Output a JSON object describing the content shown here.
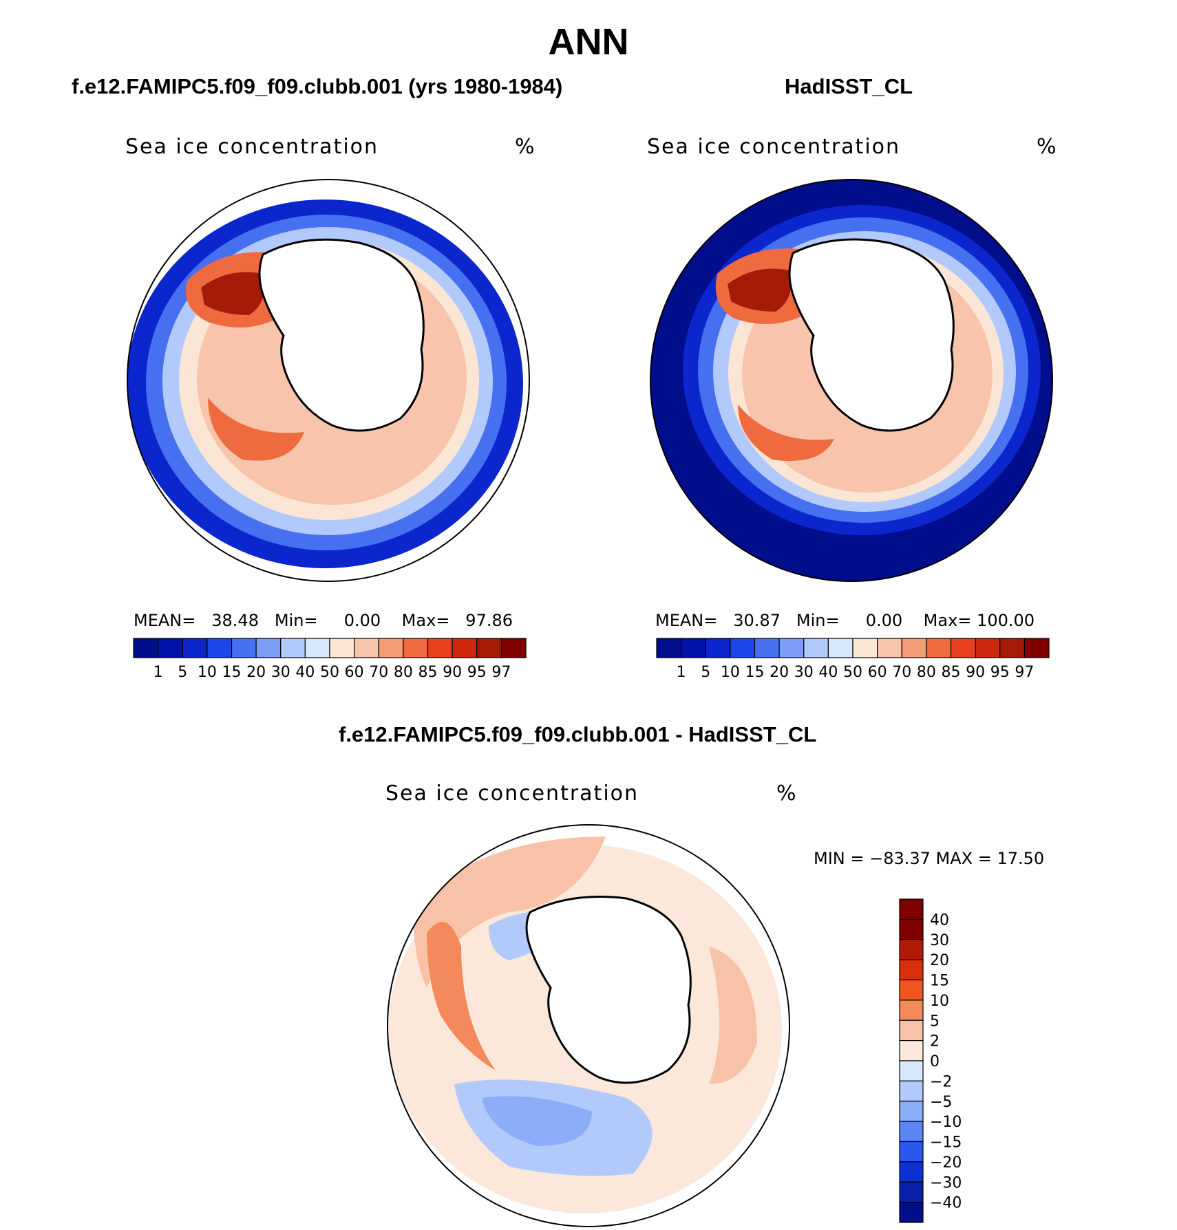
{
  "figure": {
    "title": "ANN",
    "panel_left": {
      "subtitle": "f.e12.FAMIPC5.f09_f09.clubb.001 (yrs 1980-1984)",
      "variable": "Sea ice concentration",
      "units": "%",
      "stats": {
        "mean_label": "MEAN=",
        "mean": "38.48",
        "min_label": "Min=",
        "min": "0.00",
        "max_label": "Max=",
        "max": "97.86"
      }
    },
    "panel_right": {
      "subtitle": "HadISST_CL",
      "variable": "Sea ice concentration",
      "units": "%",
      "stats": {
        "mean_label": "MEAN=",
        "mean": "30.87",
        "min_label": "Min=",
        "min": "0.00",
        "max_label": "Max=",
        "max": "100.00"
      }
    },
    "panel_diff": {
      "subtitle": "f.e12.FAMIPC5.f09_f09.clubb.001 - HadISST_CL",
      "variable": "Sea ice concentration",
      "units": "%",
      "minmax": "MIN = −83.37 MAX =   17.50"
    },
    "colorbar_levels": [
      "1",
      "5",
      "10",
      "15",
      "20",
      "30",
      "40",
      "50",
      "60",
      "70",
      "80",
      "85",
      "90",
      "95",
      "97"
    ],
    "colorbar_colors": [
      "#000e8c",
      "#0012a8",
      "#0a26cc",
      "#1a46ea",
      "#4670f0",
      "#7c9ef6",
      "#b2cafb",
      "#d8e8fc",
      "#fbe6d6",
      "#f8c4ab",
      "#f49c78",
      "#f06a40",
      "#e8401c",
      "#d0280e",
      "#a81a08",
      "#800000"
    ],
    "diff_levels": [
      "40",
      "30",
      "20",
      "15",
      "10",
      "5",
      "2",
      "0",
      "−2",
      "−5",
      "−10",
      "−15",
      "−20",
      "−30",
      "−40"
    ],
    "diff_colors": [
      "#800000",
      "#b01a06",
      "#d8300c",
      "#f25620",
      "#f48a5c",
      "#f8c2a8",
      "#fbe8da",
      "#d8e8fc",
      "#b2cafb",
      "#8caef8",
      "#5a86f2",
      "#2a58ec",
      "#0c32d6",
      "#0a20a8",
      "#000e8c"
    ]
  }
}
